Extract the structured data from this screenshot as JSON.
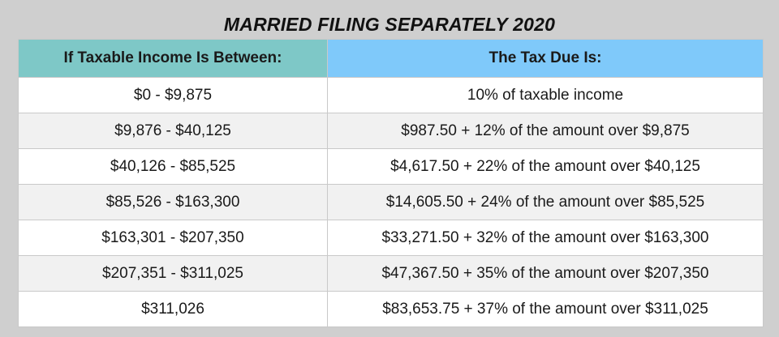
{
  "title": "MARRIED FILING SEPARATELY 2020",
  "table": {
    "headers": [
      "If Taxable Income Is Between:",
      "The Tax Due Is:"
    ],
    "rows": [
      {
        "income": "$0 - $9,875",
        "tax": "10% of taxable income"
      },
      {
        "income": "$9,876 - $40,125",
        "tax": "$987.50 + 12% of the amount over $9,875"
      },
      {
        "income": "$40,126 - $85,525",
        "tax": "$4,617.50 + 22% of the amount over $40,125"
      },
      {
        "income": "$85,526 - $163,300",
        "tax": "$14,605.50 + 24% of the amount over $85,525"
      },
      {
        "income": "$163,301 - $207,350",
        "tax": "$33,271.50 + 32% of the amount over $163,300"
      },
      {
        "income": "$207,351 - $311,025",
        "tax": "$47,367.50 + 35% of the amount over $207,350"
      },
      {
        "income": "$311,026",
        "tax": "$83,653.75 + 37% of the amount over $311,025"
      }
    ]
  },
  "colors": {
    "header_left": "#7ec8c7",
    "header_right": "#7fc9fa",
    "row_alt": "#f1f1f1",
    "page_background": "#cfcfcf"
  }
}
